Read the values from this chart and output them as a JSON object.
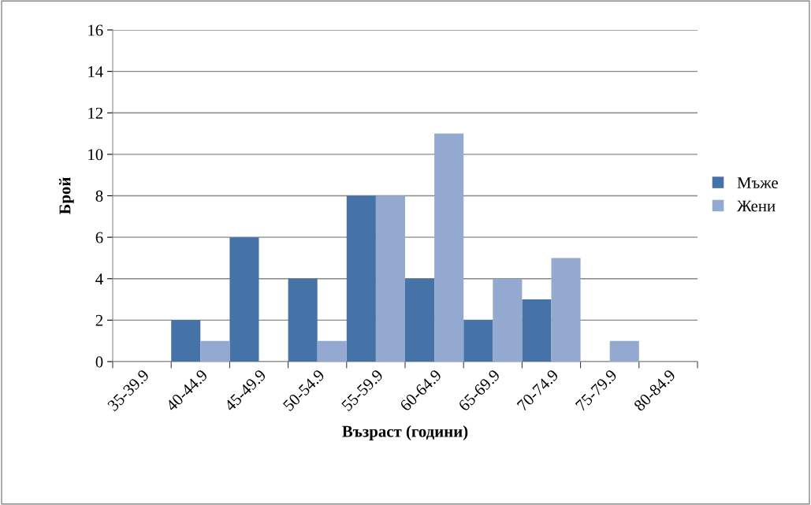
{
  "chart_data": {
    "type": "bar",
    "xlabel": "Възраст (години)",
    "ylabel": "Брой",
    "categories": [
      "35-39.9",
      "40-44.9",
      "45-49.9",
      "50-54.9",
      "55-59.9",
      "60-64.9",
      "65-69.9",
      "70-74.9",
      "75-79.9",
      "80-84.9"
    ],
    "series": [
      {
        "name": "Мъже",
        "color": "#4572a7",
        "values": [
          0,
          2,
          6,
          4,
          8,
          4,
          2,
          3,
          0,
          0
        ]
      },
      {
        "name": "Жени",
        "color": "#93a9cf",
        "values": [
          0,
          1,
          0,
          1,
          8,
          11,
          4,
          5,
          1,
          0
        ]
      }
    ],
    "ylim": [
      0,
      16
    ],
    "yticks": [
      0,
      2,
      4,
      6,
      8,
      10,
      12,
      14,
      16
    ],
    "grid": "y",
    "legend": "right"
  }
}
